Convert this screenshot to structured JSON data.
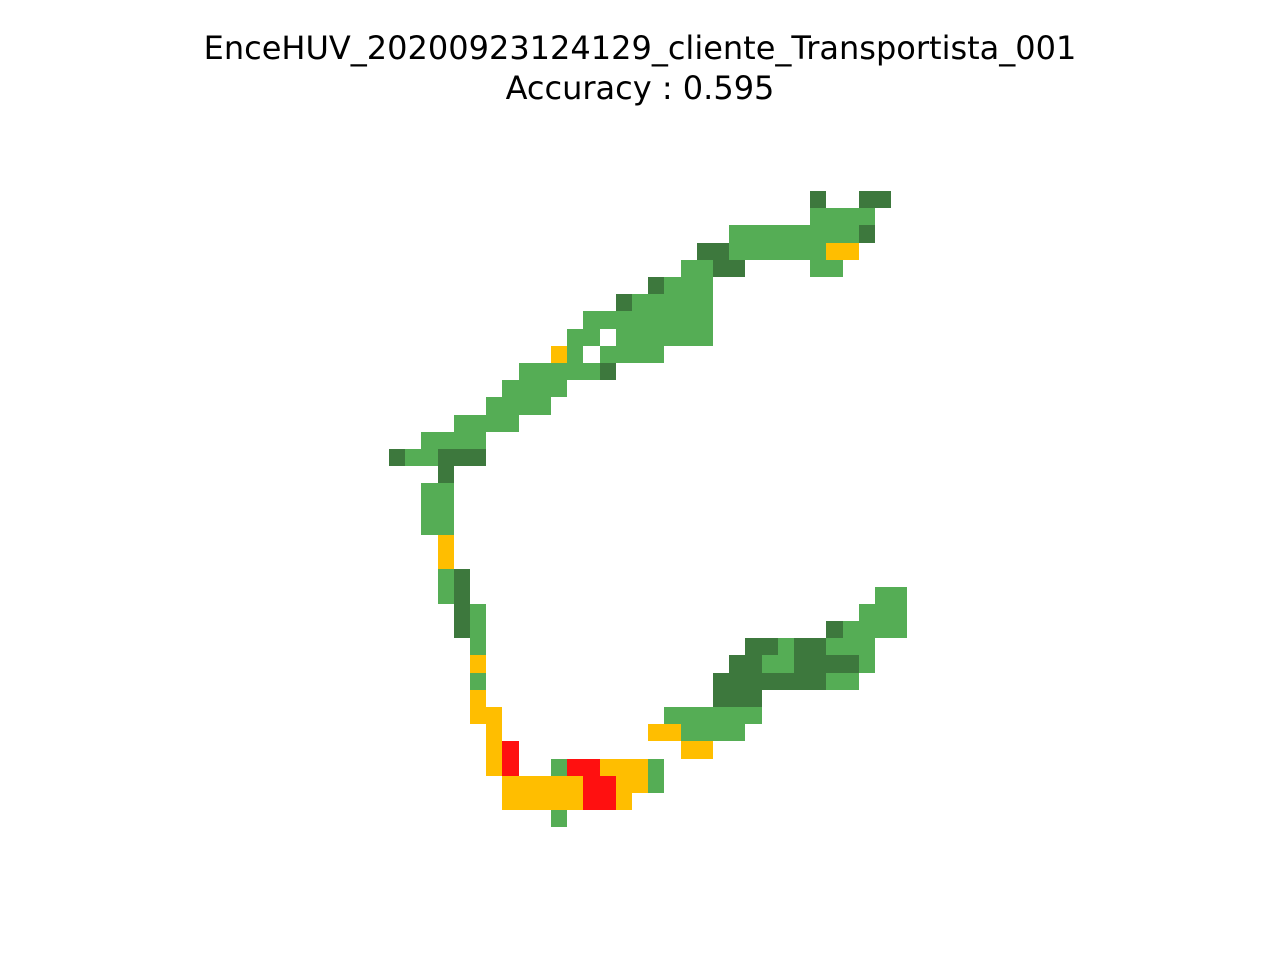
{
  "chart_data": {
    "type": "heatmap",
    "title": "EnceHUV_20200923124129_cliente_Transportista_001",
    "subtitle": "Accuracy : 0.595",
    "grid": false,
    "axes_visible": false,
    "legend": "none",
    "colors": {
      "G": "#55ad55",
      "D": "#3d783d",
      "Y": "#ffbe00",
      "R": "#ff1010"
    },
    "rows": [
      "..........................D..DD.",
      "..........................GGGG..",
      ".....................GGGGGGGGD..",
      "...................DDGGGGGGYY...",
      "..................GGDD....GG....",
      "................DGGG............",
      "..............DGGGGG............",
      "............GGGGGGGG............",
      "...........GG.GGGGGG............",
      "..........YG.GGGG...............",
      "........GGGGGD..................",
      ".......GGGG.....................",
      "......GGGG......................",
      "....GGGG........................",
      "..GGGG..........................",
      "DGGDDD..........................",
      "...D............................",
      "..GG............................",
      "..GG............................",
      "..GG............................",
      "...Y............................",
      "...Y............................",
      "...GD...........................",
      "...GD.........................GG",
      "....DG.......................GGG",
      "....DG.....................DGGGG",
      ".....G................DDGDDGGG..",
      ".....Y...............DDGGDDDDG..",
      ".....G..............DDDDDDDGG...",
      ".....Y..............DDD.........",
      ".....YY..........GGGGGG.........",
      "......Y.........YYGGGG..........",
      "......YR..........YY............",
      "......YR..GRRYYYG...............",
      ".......YYYYYRRYYG...............",
      ".......YYYYYRRY.................",
      "..........G....................."
    ]
  }
}
